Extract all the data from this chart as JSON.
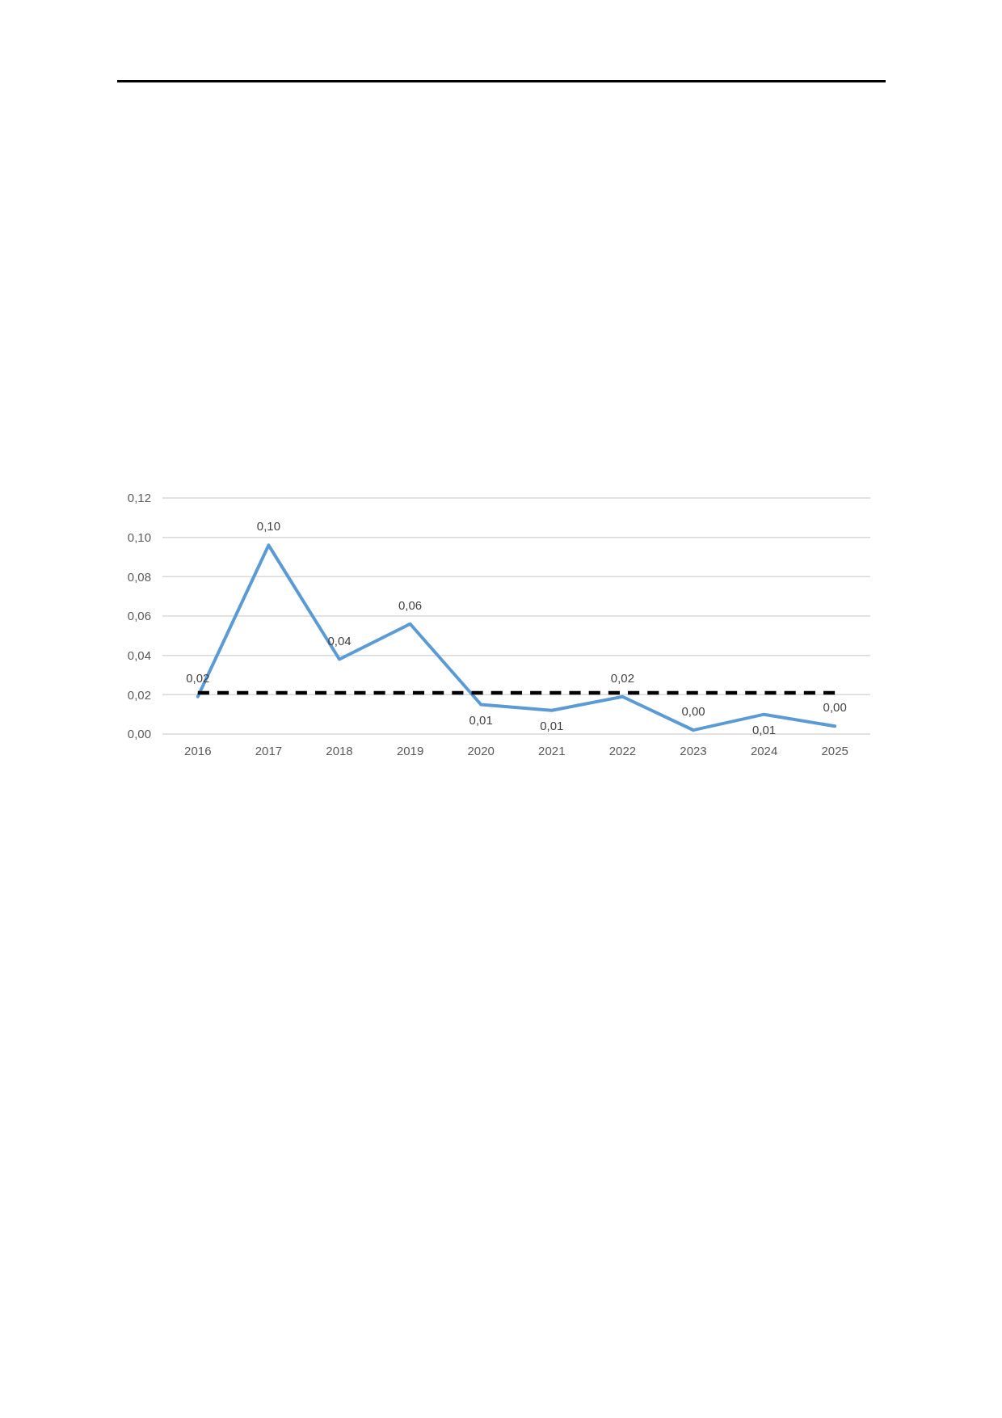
{
  "chart_data": {
    "type": "line",
    "categories": [
      "2016",
      "2017",
      "2018",
      "2019",
      "2020",
      "2021",
      "2022",
      "2023",
      "2024",
      "2025"
    ],
    "series": [
      {
        "color": "#5b9bd5",
        "values": [
          0.019,
          0.096,
          0.038,
          0.056,
          0.015,
          0.012,
          0.019,
          0.002,
          0.01,
          0.004
        ],
        "value_labels": [
          "0,02",
          "0,10",
          "0,04",
          "0,06",
          "0,01",
          "0,01",
          "0,02",
          "0,00",
          "0,01",
          "0,00"
        ]
      },
      {
        "color": "#000000",
        "line_style": "dashed",
        "values": [
          0.021,
          0.021,
          0.021,
          0.021,
          0.021,
          0.021,
          0.021,
          0.021,
          0.021,
          0.021
        ]
      }
    ],
    "ylim": [
      0,
      0.12
    ],
    "yticks": [
      {
        "value": 0,
        "label": "0,00"
      },
      {
        "value": 0.02,
        "label": "0,02"
      },
      {
        "value": 0.04,
        "label": "0,04"
      },
      {
        "value": 0.06,
        "label": "0,06"
      },
      {
        "value": 0.08,
        "label": "0,08"
      },
      {
        "value": 0.1,
        "label": "0,10"
      },
      {
        "value": 0.12,
        "label": "0,12"
      }
    ],
    "grid": "y"
  }
}
